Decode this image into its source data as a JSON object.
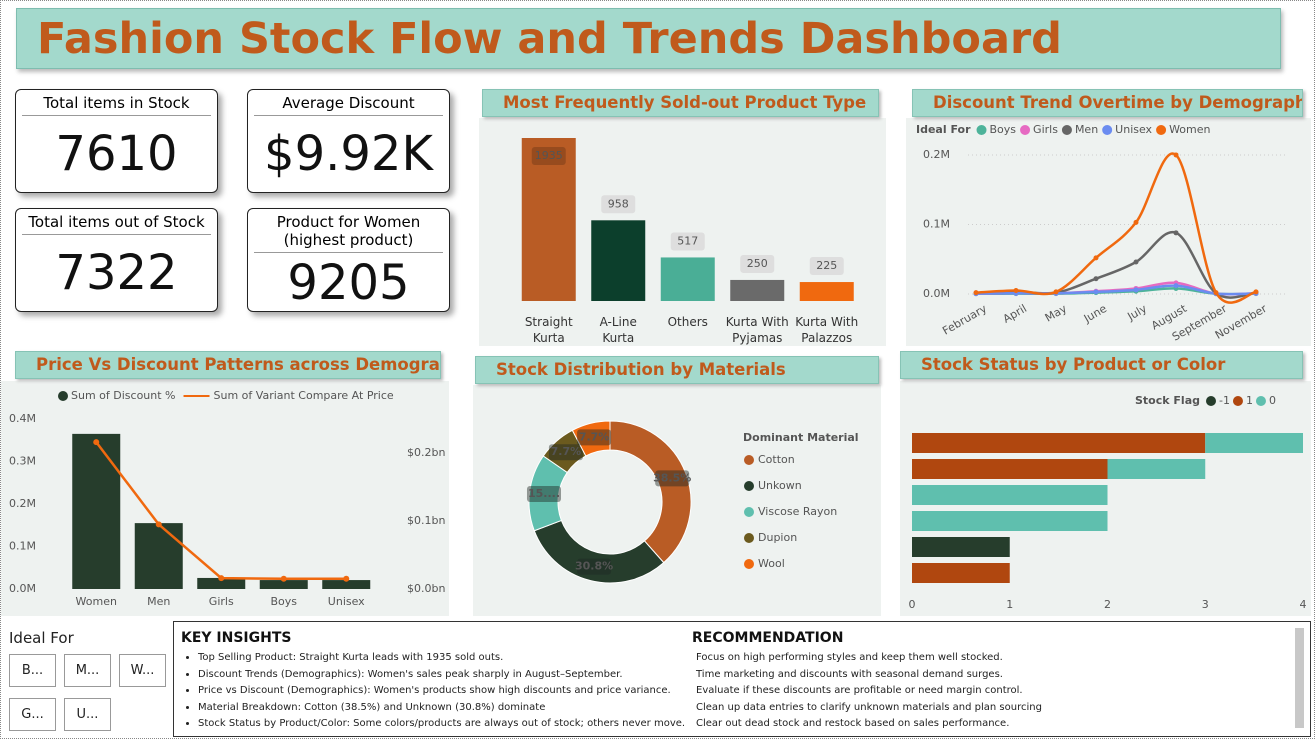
{
  "title": "Fashion Stock Flow and Trends Dashboard",
  "kpis": [
    {
      "label": "Total items in Stock",
      "value": "7610"
    },
    {
      "label": "Average Discount",
      "value": "$9.92K"
    },
    {
      "label": "Total items out of Stock",
      "value": "7322"
    },
    {
      "label": "Product for Women",
      "note": "(highest product)",
      "value": "9205"
    }
  ],
  "slicer": {
    "title": "Ideal For",
    "options": [
      "B...",
      "M...",
      "W...",
      "G...",
      "U..."
    ]
  },
  "insights": {
    "title": "KEY INSIGHTS",
    "items": [
      "Top Selling Product: Straight Kurta leads with 1935 sold outs.",
      "Discount Trends (Demographics): Women's sales peak sharply in August–September.",
      "Price vs Discount (Demographics): Women's products show high discounts and price variance.",
      "Material Breakdown: Cotton (38.5%) and Unknown (30.8%) dominate",
      "Stock Status by Product/Color: Some colors/products are always out of stock; others never move."
    ]
  },
  "recommendation": {
    "title": "RECOMMENDATION",
    "items": [
      "Focus on high performing styles and keep them well stocked.",
      "Time marketing and discounts with seasonal demand surges.",
      "Evaluate if these discounts are profitable or need margin control.",
      "Clean up data entries to clarify unknown materials and plan sourcing",
      "Clear out dead stock and restock based on sales performance."
    ]
  },
  "chart_data": [
    {
      "type": "bar",
      "title": "Most Frequently Sold-out Product Type",
      "categories": [
        "Straight Kurta",
        "A-Line Kurta",
        "Others",
        "Kurta With Pyjamas",
        "Kurta With Palazzos"
      ],
      "values": [
        1935,
        958,
        517,
        250,
        225
      ],
      "colors": [
        "#b95c25",
        "#0c3f2c",
        "#4aae96",
        "#6a6a6a",
        "#f0690f"
      ]
    },
    {
      "type": "line",
      "title": "Discount Trend Overtime by Demographics",
      "legend_title": "Ideal For",
      "categories": [
        "February",
        "April",
        "May",
        "June",
        "July",
        "August",
        "September",
        "November"
      ],
      "series": [
        {
          "name": "Boys",
          "color": "#4db39a",
          "values": [
            300,
            500,
            500,
            2000,
            4000,
            8000,
            300,
            500
          ]
        },
        {
          "name": "Girls",
          "color": "#e66ac2",
          "values": [
            500,
            1000,
            1000,
            4000,
            8000,
            16000,
            500,
            1000
          ]
        },
        {
          "name": "Men",
          "color": "#666666",
          "values": [
            1000,
            3000,
            2000,
            22000,
            46000,
            88000,
            1000,
            2000
          ]
        },
        {
          "name": "Unisex",
          "color": "#6b8cf0",
          "values": [
            500,
            1000,
            1000,
            3000,
            6000,
            12000,
            500,
            1000
          ]
        },
        {
          "name": "Women",
          "color": "#f0690f",
          "values": [
            2000,
            5000,
            3000,
            52000,
            103000,
            200000,
            2000,
            3000
          ]
        }
      ],
      "ylim": [
        0,
        210000
      ],
      "yticks": [
        {
          "value": 0,
          "label": "0.0M"
        },
        {
          "value": 100000,
          "label": "0.1M"
        },
        {
          "value": 200000,
          "label": "0.2M"
        }
      ],
      "grid": true
    },
    {
      "type": "combo",
      "title": "Price Vs Discount Patterns across Demographics",
      "categories": [
        "Women",
        "Men",
        "Girls",
        "Boys",
        "Unisex"
      ],
      "series": [
        {
          "name": "Sum of Discount %",
          "type": "bar",
          "color": "#263d2c",
          "values": [
            365000,
            155000,
            26000,
            21000,
            21000
          ]
        },
        {
          "name": "Sum of Variant Compare At Price",
          "type": "line",
          "axis": "y2",
          "color": "#f0690f",
          "values": [
            216000000,
            95000000,
            16000000,
            15000000,
            15000000
          ]
        }
      ],
      "ylim": [
        0,
        400000
      ],
      "yticks": [
        {
          "value": 0,
          "label": "0.0M"
        },
        {
          "value": 100000,
          "label": "0.1M"
        },
        {
          "value": 200000,
          "label": "0.2M"
        },
        {
          "value": 300000,
          "label": "0.3M"
        },
        {
          "value": 400000,
          "label": "0.4M"
        }
      ],
      "y2lim": [
        0,
        250000000
      ],
      "y2ticks": [
        {
          "value": 0,
          "label": "$0.0bn"
        },
        {
          "value": 100000000,
          "label": "$0.1bn"
        },
        {
          "value": 200000000,
          "label": "$0.2bn"
        }
      ]
    },
    {
      "type": "donut",
      "title": "Stock Distribution by Materials",
      "legend_title": "Dominant Material",
      "categories": [
        "Cotton",
        "Unkown",
        "Viscose Rayon",
        "Dupion",
        "Wool"
      ],
      "values": [
        38.5,
        30.8,
        15.4,
        7.7,
        7.7
      ],
      "value_labels": [
        "38.5%",
        "30.8%",
        "15....",
        "7.7%",
        "7.7%"
      ],
      "colors": [
        "#b95c25",
        "#263d2c",
        "#5fbfae",
        "#6b5a1e",
        "#f0690f"
      ]
    },
    {
      "type": "stackedbar",
      "title": "Stock Status by Product or Color",
      "legend_title": "Stock Flag",
      "categories": [
        null,
        null,
        null,
        null,
        null,
        null
      ],
      "series": [
        {
          "name": "-1",
          "color": "#263d2c",
          "values": [
            null,
            null,
            null,
            null,
            1,
            null
          ]
        },
        {
          "name": "1",
          "color": "#b0470f",
          "values": [
            3,
            2,
            null,
            null,
            null,
            1
          ]
        },
        {
          "name": "0",
          "color": "#5fbfae",
          "values": [
            1,
            1,
            2,
            2,
            null,
            null
          ]
        }
      ],
      "xlim": [
        0,
        4
      ],
      "xticks": [
        0,
        1,
        2,
        3,
        4
      ]
    }
  ]
}
